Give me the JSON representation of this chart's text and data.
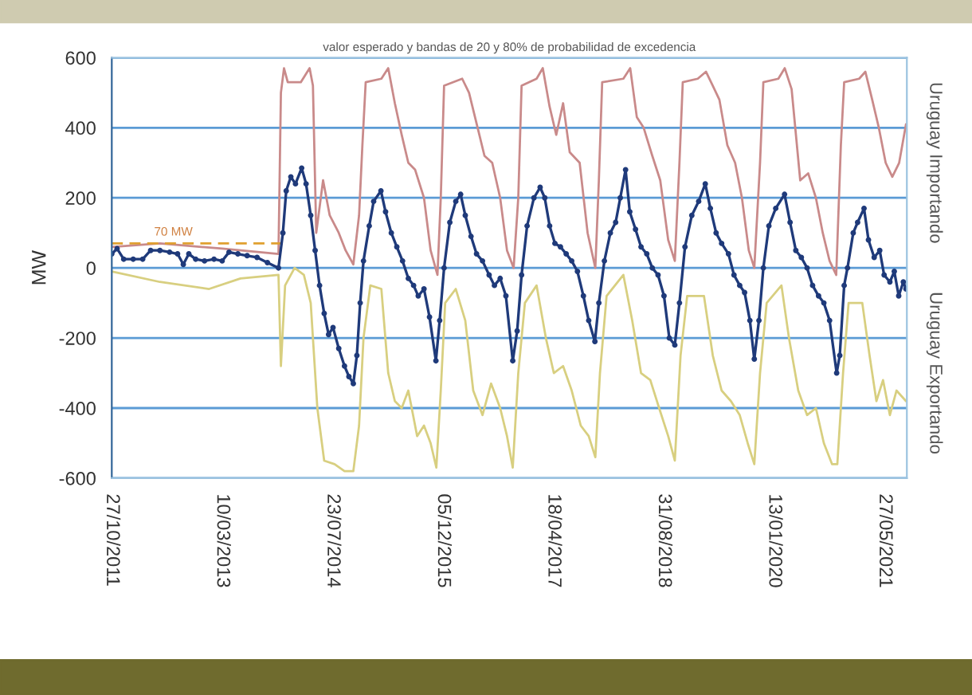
{
  "chart_data": {
    "type": "line",
    "title": "valor esperado y bandas de 20 y 80% de probabilidad de excedencia",
    "ylabel": "MW",
    "xlim": [
      "2011-10-27",
      "2021-09-05"
    ],
    "xticks": [
      {
        "value": "2011-10-27",
        "label": "27/10/2011"
      },
      {
        "value": "2013-03-10",
        "label": "10/03/2013"
      },
      {
        "value": "2014-07-23",
        "label": "23/07/2014"
      },
      {
        "value": "2015-12-05",
        "label": "05/12/2015"
      },
      {
        "value": "2017-04-18",
        "label": "18/04/2017"
      },
      {
        "value": "2018-08-31",
        "label": "31/08/2018"
      },
      {
        "value": "2020-01-13",
        "label": "13/01/2020"
      },
      {
        "value": "2021-05-27",
        "label": "27/05/2021"
      }
    ],
    "ylim": [
      -600,
      600
    ],
    "yticks": [
      -600,
      -400,
      -200,
      0,
      200,
      400,
      600
    ],
    "grid": "y",
    "annotations": [
      "Uruguay Importando",
      "Uruguay Exportando",
      {
        "text": "70 MW",
        "x": "2012-08-01",
        "y": 85
      }
    ],
    "series": [
      {
        "color": "#c98a8a",
        "marker": "none",
        "x": [
          "2011-10-27",
          "2012-06-01",
          "2013-03-10",
          "2013-11-20",
          "2013-12-01",
          "2013-12-15",
          "2014-01-01",
          "2014-03-01",
          "2014-04-10",
          "2014-04-25",
          "2014-05-10",
          "2014-06-10",
          "2014-07-10",
          "2014-08-20",
          "2014-09-20",
          "2014-10-25",
          "2014-11-20",
          "2014-12-05",
          "2014-12-20",
          "2015-03-01",
          "2015-04-01",
          "2015-05-01",
          "2015-06-01",
          "2015-07-01",
          "2015-08-01",
          "2015-09-10",
          "2015-10-10",
          "2015-11-10",
          "2015-11-25",
          "2015-12-10",
          "2016-03-01",
          "2016-04-01",
          "2016-05-10",
          "2016-06-10",
          "2016-07-15",
          "2016-08-20",
          "2016-09-20",
          "2016-10-20",
          "2016-11-10",
          "2016-11-25",
          "2017-02-01",
          "2017-03-01",
          "2017-04-01",
          "2017-05-01",
          "2017-06-01",
          "2017-07-01",
          "2017-08-15",
          "2017-09-20",
          "2017-10-25",
          "2017-11-10",
          "2017-11-25",
          "2018-03-01",
          "2018-04-01",
          "2018-05-01",
          "2018-06-01",
          "2018-07-10",
          "2018-08-15",
          "2018-09-20",
          "2018-10-20",
          "2018-11-10",
          "2018-11-25",
          "2019-02-01",
          "2019-03-10",
          "2019-04-10",
          "2019-05-10",
          "2019-06-15",
          "2019-07-20",
          "2019-08-20",
          "2019-09-20",
          "2019-10-15",
          "2019-11-10",
          "2019-11-25",
          "2020-02-01",
          "2020-03-01",
          "2020-04-01",
          "2020-05-10",
          "2020-06-15",
          "2020-07-20",
          "2020-08-20",
          "2020-09-20",
          "2020-10-20",
          "2020-11-10",
          "2020-11-25",
          "2021-02-01",
          "2021-03-01",
          "2021-04-01",
          "2021-05-01",
          "2021-06-01",
          "2021-07-01",
          "2021-08-01",
          "2021-09-01"
        ],
        "values": [
          60,
          70,
          55,
          40,
          500,
          570,
          530,
          530,
          570,
          520,
          100,
          250,
          150,
          100,
          50,
          10,
          150,
          350,
          530,
          540,
          570,
          470,
          380,
          300,
          280,
          200,
          50,
          -20,
          200,
          520,
          540,
          500,
          400,
          320,
          300,
          200,
          50,
          0,
          200,
          520,
          540,
          570,
          460,
          380,
          470,
          330,
          300,
          100,
          0,
          250,
          530,
          540,
          570,
          430,
          400,
          320,
          250,
          80,
          20,
          300,
          530,
          540,
          560,
          520,
          480,
          350,
          300,
          200,
          50,
          0,
          300,
          530,
          540,
          570,
          510,
          250,
          270,
          200,
          100,
          20,
          -20,
          350,
          530,
          540,
          560,
          480,
          400,
          300,
          260,
          300,
          410
        ]
      },
      {
        "color": "#d8cf80",
        "marker": "none",
        "x": [
          "2011-10-27",
          "2012-06-01",
          "2013-01-10",
          "2013-06-01",
          "2013-11-20",
          "2013-12-01",
          "2013-12-20",
          "2014-02-01",
          "2014-03-15",
          "2014-04-15",
          "2014-05-15",
          "2014-06-15",
          "2014-08-01",
          "2014-09-15",
          "2014-10-25",
          "2014-11-20",
          "2014-12-10",
          "2015-01-10",
          "2015-03-01",
          "2015-04-01",
          "2015-05-01",
          "2015-06-01",
          "2015-07-01",
          "2015-08-10",
          "2015-09-10",
          "2015-10-10",
          "2015-11-05",
          "2015-11-25",
          "2015-12-15",
          "2016-02-01",
          "2016-03-15",
          "2016-04-20",
          "2016-06-01",
          "2016-07-10",
          "2016-08-20",
          "2016-09-20",
          "2016-10-16",
          "2016-11-10",
          "2016-12-10",
          "2017-02-01",
          "2017-03-15",
          "2017-04-20",
          "2017-06-01",
          "2017-07-10",
          "2017-08-20",
          "2017-09-25",
          "2017-10-25",
          "2017-11-15",
          "2017-12-15",
          "2018-03-01",
          "2018-04-10",
          "2018-05-20",
          "2018-07-01",
          "2018-08-10",
          "2018-09-20",
          "2018-10-20",
          "2018-11-15",
          "2018-12-15",
          "2019-03-01",
          "2019-04-10",
          "2019-05-20",
          "2019-07-01",
          "2019-08-10",
          "2019-09-15",
          "2019-10-15",
          "2019-11-10",
          "2019-12-10",
          "2020-02-15",
          "2020-03-20",
          "2020-05-01",
          "2020-06-10",
          "2020-07-20",
          "2020-08-25",
          "2020-10-01",
          "2020-10-25",
          "2020-11-20",
          "2020-12-15",
          "2021-02-15",
          "2021-03-20",
          "2021-04-20",
          "2021-05-20",
          "2021-06-20",
          "2021-07-20",
          "2021-09-01"
        ],
        "values": [
          -10,
          -40,
          -60,
          -30,
          -20,
          -280,
          -50,
          0,
          -20,
          -100,
          -400,
          -550,
          -560,
          -580,
          -580,
          -450,
          -200,
          -50,
          -60,
          -300,
          -380,
          -400,
          -350,
          -480,
          -450,
          -500,
          -570,
          -350,
          -100,
          -60,
          -150,
          -350,
          -420,
          -330,
          -400,
          -480,
          -570,
          -300,
          -100,
          -50,
          -200,
          -300,
          -280,
          -350,
          -450,
          -480,
          -540,
          -300,
          -80,
          -20,
          -150,
          -300,
          -320,
          -400,
          -480,
          -550,
          -250,
          -80,
          -80,
          -250,
          -350,
          -380,
          -420,
          -500,
          -560,
          -300,
          -100,
          -50,
          -200,
          -350,
          -420,
          -400,
          -500,
          -560,
          -560,
          -300,
          -100,
          -100,
          -250,
          -380,
          -320,
          -420,
          -350,
          -380
        ]
      },
      {
        "color": "#e0a030",
        "marker": "none",
        "line_style": "dashed",
        "x": [
          "2011-10-27",
          "2013-12-01"
        ],
        "values": [
          70,
          70
        ]
      },
      {
        "color": "#1f3a7a",
        "marker": "circle",
        "x": [
          "2011-10-27",
          "2011-11-20",
          "2011-12-20",
          "2012-02-01",
          "2012-03-15",
          "2012-04-20",
          "2012-06-01",
          "2012-07-15",
          "2012-08-20",
          "2012-09-15",
          "2012-10-10",
          "2012-11-10",
          "2012-12-20",
          "2013-02-01",
          "2013-03-10",
          "2013-04-10",
          "2013-05-20",
          "2013-07-01",
          "2013-08-15",
          "2013-10-01",
          "2013-11-20",
          "2013-12-10",
          "2013-12-25",
          "2014-01-15",
          "2014-02-05",
          "2014-03-05",
          "2014-03-25",
          "2014-04-15",
          "2014-05-05",
          "2014-05-25",
          "2014-06-15",
          "2014-07-05",
          "2014-07-25",
          "2014-08-20",
          "2014-09-15",
          "2014-10-05",
          "2014-10-25",
          "2014-11-10",
          "2014-11-25",
          "2014-12-10",
          "2015-01-05",
          "2015-01-25",
          "2015-02-27",
          "2015-03-20",
          "2015-04-15",
          "2015-05-10",
          "2015-06-05",
          "2015-07-01",
          "2015-07-25",
          "2015-08-15",
          "2015-09-10",
          "2015-10-05",
          "2015-11-03",
          "2015-11-20",
          "2015-12-10",
          "2016-01-05",
          "2016-02-01",
          "2016-02-23",
          "2016-03-15",
          "2016-04-10",
          "2016-05-05",
          "2016-06-01",
          "2016-07-01",
          "2016-07-25",
          "2016-08-20",
          "2016-09-15",
          "2016-10-16",
          "2016-11-05",
          "2016-11-25",
          "2016-12-20",
          "2017-01-20",
          "2017-02-17",
          "2017-03-10",
          "2017-04-01",
          "2017-04-25",
          "2017-05-20",
          "2017-06-15",
          "2017-07-10",
          "2017-08-05",
          "2017-09-01",
          "2017-09-25",
          "2017-10-23",
          "2017-11-10",
          "2017-12-05",
          "2018-01-01",
          "2018-01-25",
          "2018-02-15",
          "2018-03-11",
          "2018-03-30",
          "2018-04-25",
          "2018-05-20",
          "2018-06-15",
          "2018-07-10",
          "2018-08-05",
          "2018-09-01",
          "2018-09-25",
          "2018-10-20",
          "2018-11-10",
          "2018-12-05",
          "2019-01-05",
          "2019-02-05",
          "2019-03-07",
          "2019-03-30",
          "2019-04-25",
          "2019-05-20",
          "2019-06-20",
          "2019-07-15",
          "2019-08-10",
          "2019-09-01",
          "2019-09-25",
          "2019-10-15",
          "2019-11-05",
          "2019-11-25",
          "2019-12-20",
          "2020-01-20",
          "2020-02-29",
          "2020-03-25",
          "2020-04-20",
          "2020-05-15",
          "2020-06-10",
          "2020-07-05",
          "2020-08-01",
          "2020-08-25",
          "2020-09-20",
          "2020-10-22",
          "2020-11-05",
          "2020-11-25",
          "2020-12-10",
          "2021-01-05",
          "2021-01-25",
          "2021-02-23",
          "2021-03-15",
          "2021-04-10",
          "2021-05-05",
          "2021-05-25",
          "2021-06-20",
          "2021-07-10",
          "2021-07-30",
          "2021-08-20",
          "2021-09-01"
        ],
        "values": [
          40,
          55,
          25,
          25,
          25,
          50,
          50,
          45,
          40,
          10,
          40,
          25,
          20,
          25,
          20,
          45,
          40,
          35,
          30,
          15,
          0,
          100,
          220,
          260,
          240,
          285,
          240,
          150,
          50,
          -50,
          -130,
          -190,
          -170,
          -230,
          -280,
          -310,
          -330,
          -250,
          -100,
          20,
          120,
          190,
          220,
          160,
          100,
          60,
          20,
          -30,
          -50,
          -80,
          -60,
          -140,
          -265,
          -150,
          0,
          130,
          190,
          210,
          150,
          90,
          40,
          20,
          -20,
          -50,
          -30,
          -80,
          -265,
          -180,
          -20,
          120,
          200,
          230,
          200,
          120,
          70,
          60,
          40,
          20,
          -10,
          -80,
          -150,
          -210,
          -100,
          20,
          100,
          130,
          200,
          280,
          160,
          110,
          60,
          40,
          0,
          -20,
          -80,
          -200,
          -220,
          -100,
          60,
          150,
          190,
          240,
          170,
          100,
          70,
          40,
          -20,
          -50,
          -70,
          -150,
          -260,
          -150,
          0,
          120,
          170,
          210,
          130,
          50,
          30,
          0,
          -50,
          -80,
          -100,
          -150,
          -300,
          -250,
          -50,
          0,
          100,
          130,
          170,
          80,
          30,
          50,
          -20,
          -40,
          -10,
          -80,
          -40,
          -60
        ]
      }
    ]
  }
}
